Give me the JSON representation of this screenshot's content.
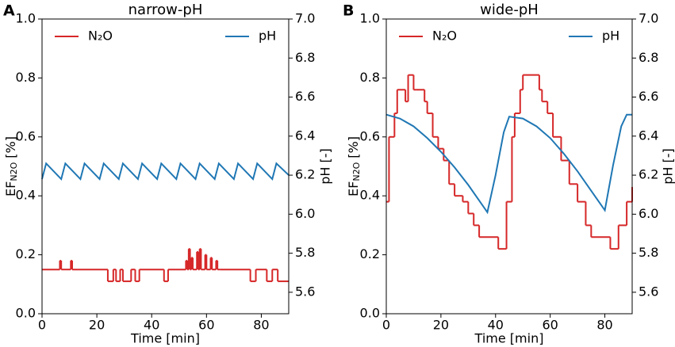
{
  "chart_data": [
    {
      "type": "line",
      "panel_label": "A",
      "title": "narrow-pH",
      "xlabel": "Time [min]",
      "ylabel": {
        "main": "EF",
        "sub": "N2O",
        "unit": "[%]"
      },
      "y2label": "pH [-]",
      "xlim": [
        0,
        90
      ],
      "xticks": [
        0,
        20,
        40,
        60,
        80
      ],
      "ylim": [
        0,
        1
      ],
      "yticks": [
        {
          "value": 0,
          "label": "0.0"
        },
        0.2,
        0.4,
        0.6,
        0.8,
        {
          "value": 1,
          "label": "1.0"
        }
      ],
      "y2lim": [
        5.49,
        7.0
      ],
      "y2ticks": [
        5.6,
        5.8,
        {
          "value": 6,
          "label": "6.0"
        },
        6.2,
        6.4,
        6.6,
        6.8,
        {
          "value": 7,
          "label": "7.0"
        }
      ],
      "series": [
        {
          "name": "N₂O",
          "color": "#d62728",
          "drawstyle": "steps-post",
          "x": [
            0,
            6.5,
            7,
            10.5,
            11,
            24,
            26,
            27,
            28.5,
            29.5,
            32.5,
            34,
            35.5,
            44.5,
            46,
            52.5,
            53,
            53.5,
            54,
            54.5,
            55,
            56.5,
            57,
            57.5,
            58,
            59.5,
            60,
            61.5,
            62,
            63.5,
            64,
            65,
            76,
            78,
            82,
            84,
            86,
            90
          ],
          "values": [
            0.15,
            0.18,
            0.15,
            0.18,
            0.15,
            0.11,
            0.15,
            0.11,
            0.15,
            0.11,
            0.15,
            0.11,
            0.15,
            0.11,
            0.15,
            0.18,
            0.15,
            0.22,
            0.15,
            0.19,
            0.15,
            0.21,
            0.15,
            0.22,
            0.15,
            0.2,
            0.15,
            0.19,
            0.15,
            0.18,
            0.15,
            0.15,
            0.11,
            0.15,
            0.11,
            0.15,
            0.11,
            0.11
          ]
        },
        {
          "name": "pH",
          "color": "#1f77b4",
          "axis": "y2",
          "x": [
            0,
            1.5,
            7,
            8.5,
            14,
            15.5,
            21,
            22.5,
            28,
            29.5,
            35,
            36.5,
            42,
            43.5,
            49,
            50.5,
            56,
            57.5,
            63,
            64.5,
            70,
            71.5,
            77,
            78.5,
            84,
            85.5,
            90
          ],
          "values": [
            6.18,
            6.26,
            6.18,
            6.26,
            6.18,
            6.26,
            6.18,
            6.26,
            6.18,
            6.26,
            6.18,
            6.26,
            6.18,
            6.26,
            6.18,
            6.26,
            6.18,
            6.26,
            6.18,
            6.26,
            6.18,
            6.26,
            6.18,
            6.26,
            6.18,
            6.26,
            6.2
          ]
        }
      ]
    },
    {
      "type": "line",
      "panel_label": "B",
      "title": "wide-pH",
      "xlabel": "Time [min]",
      "ylabel": {
        "main": "EF",
        "sub": "N2O",
        "unit": "[%]"
      },
      "y2label": "pH [-]",
      "xlim": [
        0,
        90
      ],
      "xticks": [
        0,
        20,
        40,
        60,
        80
      ],
      "ylim": [
        0,
        1
      ],
      "yticks": [
        {
          "value": 0,
          "label": "0.0"
        },
        0.2,
        0.4,
        0.6,
        0.8,
        {
          "value": 1,
          "label": "1.0"
        }
      ],
      "y2lim": [
        5.49,
        7.0
      ],
      "y2ticks": [
        5.6,
        5.8,
        {
          "value": 6,
          "label": "6.0"
        },
        6.2,
        6.4,
        6.6,
        6.8,
        {
          "value": 7,
          "label": "7.0"
        }
      ],
      "series": [
        {
          "name": "N₂O",
          "color": "#d62728",
          "drawstyle": "steps-post",
          "x": [
            0,
            1,
            3,
            4,
            7,
            8,
            10,
            11,
            14,
            15,
            17,
            19,
            21,
            23,
            25,
            28,
            30,
            32,
            34,
            41,
            44,
            46,
            47,
            49,
            50,
            56,
            57,
            59,
            61,
            64,
            67,
            70,
            73,
            75,
            82,
            85,
            88,
            90
          ],
          "values": [
            0.38,
            0.6,
            0.68,
            0.76,
            0.72,
            0.81,
            0.76,
            0.76,
            0.72,
            0.68,
            0.6,
            0.56,
            0.52,
            0.44,
            0.4,
            0.38,
            0.34,
            0.3,
            0.26,
            0.22,
            0.38,
            0.6,
            0.68,
            0.76,
            0.81,
            0.76,
            0.72,
            0.68,
            0.6,
            0.52,
            0.44,
            0.38,
            0.3,
            0.26,
            0.22,
            0.3,
            0.38,
            0.43
          ]
        },
        {
          "name": "pH",
          "color": "#1f77b4",
          "axis": "y2",
          "x": [
            0,
            5,
            10,
            15,
            20,
            25,
            30,
            35,
            37,
            40,
            43,
            45,
            50,
            55,
            60,
            65,
            70,
            75,
            80,
            83,
            86,
            88,
            90
          ],
          "values": [
            6.51,
            6.49,
            6.45,
            6.39,
            6.32,
            6.24,
            6.15,
            6.05,
            6.01,
            6.2,
            6.42,
            6.5,
            6.49,
            6.45,
            6.39,
            6.31,
            6.22,
            6.12,
            6.02,
            6.25,
            6.45,
            6.51,
            6.51
          ]
        }
      ]
    }
  ]
}
